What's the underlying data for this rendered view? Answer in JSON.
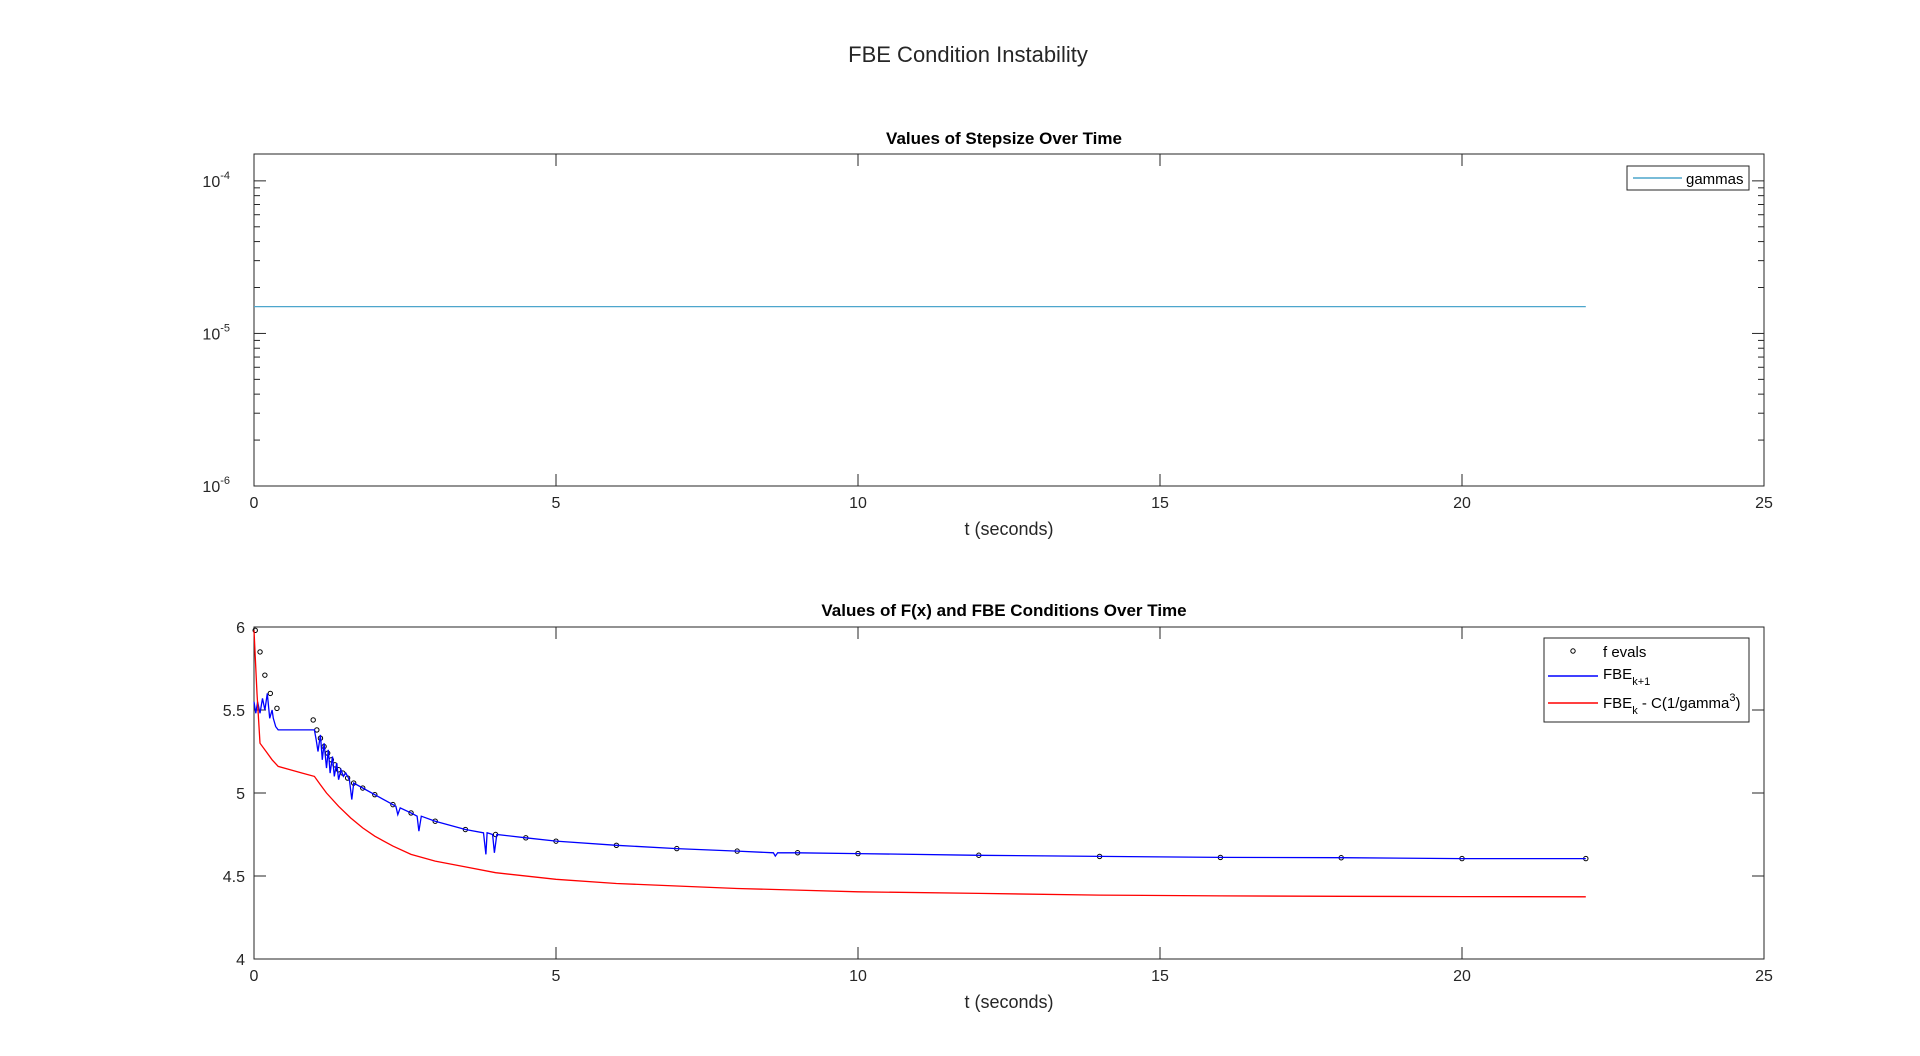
{
  "figure": {
    "suptitle": "FBE Condition Instability"
  },
  "chart_data": [
    {
      "type": "line",
      "title": "Values of Stepsize Over Time",
      "xlabel": "t (seconds)",
      "ylabel": "",
      "xlim": [
        0,
        25
      ],
      "ylim": [
        1e-06,
        0.00015
      ],
      "yscale": "log",
      "xticks": [
        0,
        5,
        10,
        15,
        20,
        25
      ],
      "xtick_labels": [
        "0",
        "5",
        "10",
        "15",
        "20",
        "25"
      ],
      "ytick_labels": [
        {
          "base": "10",
          "exp": "-6"
        },
        {
          "base": "10",
          "exp": "-5"
        },
        {
          "base": "10",
          "exp": "-4"
        }
      ],
      "grid": false,
      "legend_location": "top-right",
      "series": [
        {
          "name": "gammas",
          "color": "#4DA6CC",
          "style": "line",
          "x": [
            0,
            22.05
          ],
          "y": [
            1.5e-05,
            1.5e-05
          ]
        }
      ]
    },
    {
      "type": "line",
      "title": "Values of F(x) and FBE Conditions Over Time",
      "xlabel": "t (seconds)",
      "ylabel": "",
      "xlim": [
        0,
        25
      ],
      "ylim": [
        4,
        6
      ],
      "xticks": [
        0,
        5,
        10,
        15,
        20,
        25
      ],
      "xtick_labels": [
        "0",
        "5",
        "10",
        "15",
        "20",
        "25"
      ],
      "yticks": [
        4,
        4.5,
        5,
        5.5,
        6
      ],
      "ytick_labels": [
        "4",
        "4.5",
        "5",
        "5.5",
        "6"
      ],
      "grid": false,
      "legend_location": "top-right",
      "series": [
        {
          "name": "f evals",
          "color": "#000000",
          "style": "markers",
          "x": [
            0.02,
            0.1,
            0.18,
            0.27,
            0.38,
            0.98,
            1.04,
            1.1,
            1.16,
            1.22,
            1.28,
            1.34,
            1.4,
            1.47,
            1.55,
            1.65,
            1.8,
            2.0,
            2.3,
            2.6,
            3.0,
            3.5,
            4.0,
            4.5,
            5.0,
            6.0,
            7.0,
            8.0,
            9.0,
            10.0,
            12.0,
            14.0,
            16.0,
            18.0,
            20.0,
            22.05
          ],
          "y": [
            5.98,
            5.85,
            5.71,
            5.6,
            5.51,
            5.44,
            5.38,
            5.33,
            5.28,
            5.24,
            5.2,
            5.17,
            5.14,
            5.12,
            5.09,
            5.06,
            5.03,
            4.99,
            4.93,
            4.88,
            4.83,
            4.78,
            4.75,
            4.73,
            4.71,
            4.685,
            4.665,
            4.65,
            4.64,
            4.635,
            4.625,
            4.618,
            4.612,
            4.61,
            4.605,
            4.605
          ]
        },
        {
          "name": "FBE",
          "name_sub": "k+1",
          "color": "#0000FF",
          "style": "line",
          "x": [
            0.0,
            0.03,
            0.06,
            0.1,
            0.14,
            0.18,
            0.22,
            0.26,
            0.3,
            0.32,
            0.36,
            0.4,
            1.0,
            1.03,
            1.06,
            1.1,
            1.13,
            1.16,
            1.2,
            1.23,
            1.26,
            1.3,
            1.33,
            1.37,
            1.4,
            1.44,
            1.48,
            1.52,
            1.58,
            1.62,
            1.65,
            1.8,
            2.0,
            2.2,
            2.35,
            2.38,
            2.42,
            2.6,
            2.7,
            2.73,
            2.77,
            3.0,
            3.5,
            3.8,
            3.84,
            3.86,
            3.95,
            3.98,
            4.02,
            4.5,
            5.0,
            6.0,
            7.0,
            8.0,
            8.6,
            8.63,
            8.67,
            9.0,
            10.0,
            12.0,
            14.0,
            16.0,
            18.0,
            20.0,
            22.05
          ],
          "y": [
            5.55,
            5.48,
            5.55,
            5.48,
            5.57,
            5.5,
            5.6,
            5.45,
            5.5,
            5.45,
            5.4,
            5.38,
            5.38,
            5.32,
            5.25,
            5.35,
            5.2,
            5.3,
            5.15,
            5.26,
            5.12,
            5.22,
            5.1,
            5.18,
            5.08,
            5.14,
            5.1,
            5.12,
            5.08,
            4.96,
            5.06,
            5.03,
            4.99,
            4.95,
            4.92,
            4.87,
            4.91,
            4.88,
            4.86,
            4.77,
            4.86,
            4.83,
            4.78,
            4.76,
            4.63,
            4.76,
            4.75,
            4.64,
            4.75,
            4.73,
            4.71,
            4.685,
            4.665,
            4.65,
            4.64,
            4.62,
            4.64,
            4.64,
            4.635,
            4.625,
            4.618,
            4.612,
            4.61,
            4.605,
            4.605
          ]
        },
        {
          "name": "FBE",
          "name_sub": "k",
          "name_rest": " - C(1/gamma",
          "name_sup": "3",
          "name_end": ")",
          "color": "#FF0000",
          "style": "line",
          "x": [
            0.0,
            0.05,
            0.1,
            0.2,
            0.3,
            0.4,
            0.6,
            0.8,
            1.0,
            1.1,
            1.2,
            1.4,
            1.6,
            1.8,
            2.0,
            2.3,
            2.6,
            3.0,
            3.5,
            4.0,
            5.0,
            6.0,
            7.0,
            8.0,
            9.0,
            10.0,
            12.0,
            14.0,
            16.0,
            18.0,
            20.0,
            22.05
          ],
          "y": [
            5.98,
            5.6,
            5.3,
            5.25,
            5.2,
            5.16,
            5.14,
            5.12,
            5.1,
            5.05,
            5.0,
            4.92,
            4.85,
            4.79,
            4.74,
            4.68,
            4.63,
            4.59,
            4.555,
            4.52,
            4.48,
            4.455,
            4.44,
            4.425,
            4.415,
            4.405,
            4.395,
            4.385,
            4.38,
            4.378,
            4.376,
            4.375
          ]
        }
      ]
    }
  ]
}
